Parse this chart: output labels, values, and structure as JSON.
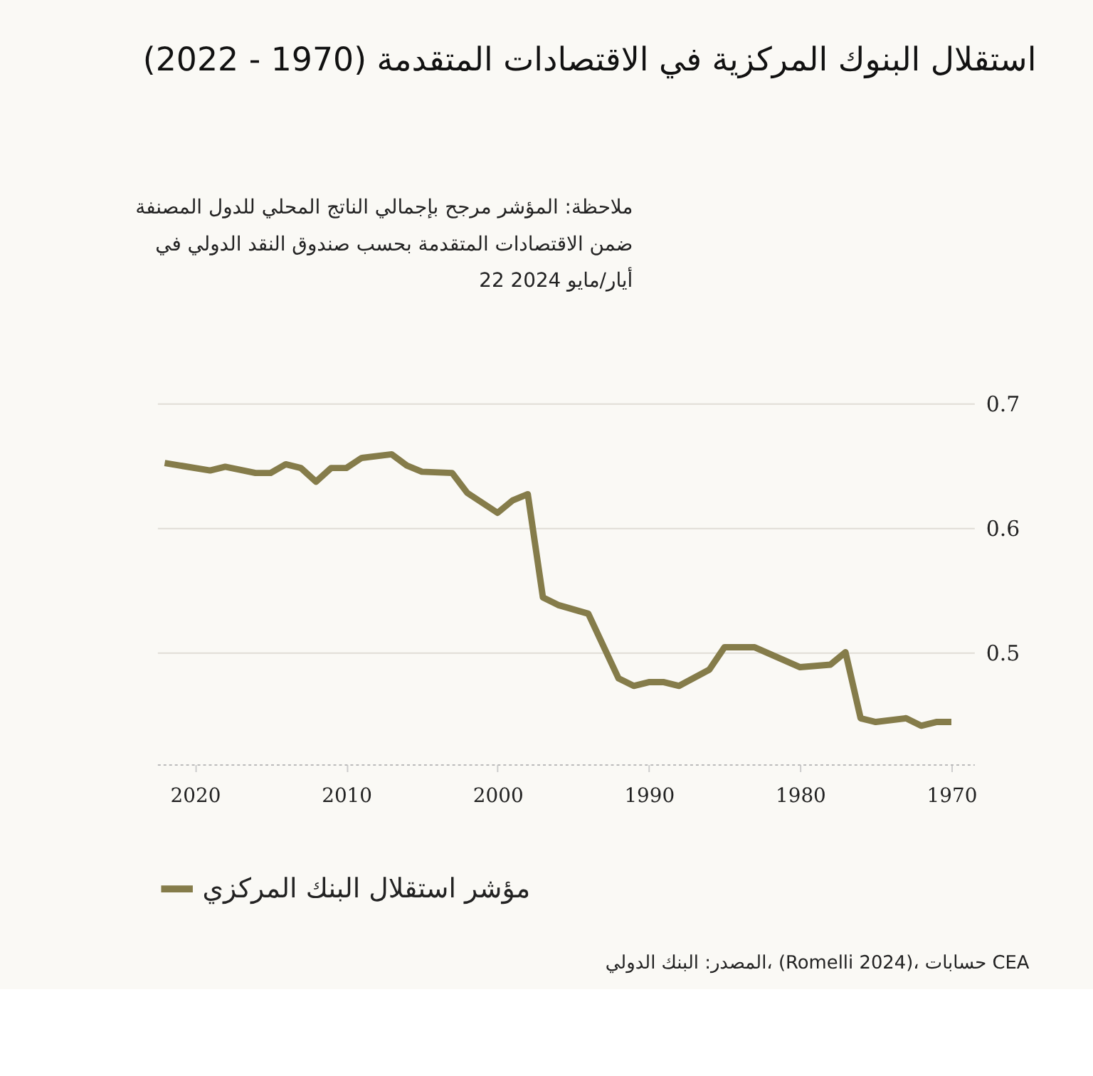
{
  "chart_data": {
    "type": "line",
    "title": "استقلال البنوك المركزية في الاقتصادات المتقدمة (1970 - 2022)",
    "x": [
      2022,
      2019,
      2018,
      2016,
      2015,
      2014,
      2013,
      2012,
      2011,
      2010,
      2009,
      2007,
      2006,
      2005,
      2003,
      2002,
      2000,
      1999,
      1998,
      1997,
      1996,
      1994,
      1992,
      1991,
      1990,
      1989,
      1988,
      1986,
      1985,
      1983,
      1980,
      1978,
      1977,
      1976,
      1975,
      1973,
      1972,
      1971,
      1970
    ],
    "series": [
      {
        "name": "مؤشر استقلال البنك المركزي",
        "color": "#857c4a",
        "values": [
          0.652,
          0.646,
          0.649,
          0.644,
          0.644,
          0.651,
          0.648,
          0.637,
          0.648,
          0.648,
          0.656,
          0.659,
          0.65,
          0.645,
          0.644,
          0.628,
          0.612,
          0.622,
          0.627,
          0.544,
          0.538,
          0.531,
          0.479,
          0.473,
          0.476,
          0.476,
          0.473,
          0.486,
          0.504,
          0.504,
          0.488,
          0.49,
          0.5,
          0.447,
          0.444,
          0.447,
          0.441,
          0.444,
          0.444
        ]
      }
    ],
    "xlim": [
      2022.5,
      1968.5
    ],
    "xticks": [
      2020,
      2010,
      2000,
      1990,
      1980,
      1970
    ],
    "ylim": [
      0.41,
      0.7
    ],
    "yticks": [
      0.5,
      0.6,
      0.7
    ],
    "grid": "y",
    "legend": "bottom",
    "line_style": "solid",
    "marker": "none",
    "annotations": [
      "ملاحظة: المؤشر مرجح بإجمالي الناتج المحلي للدول المصنفة\nضمن الاقتصادات المتقدمة بحسب صندوق النقد الدولي في\n22 أيار/مايو 2024",
      "المصدر: البنك الدولي، (Romelli 2024)، حسابات CEA"
    ]
  }
}
